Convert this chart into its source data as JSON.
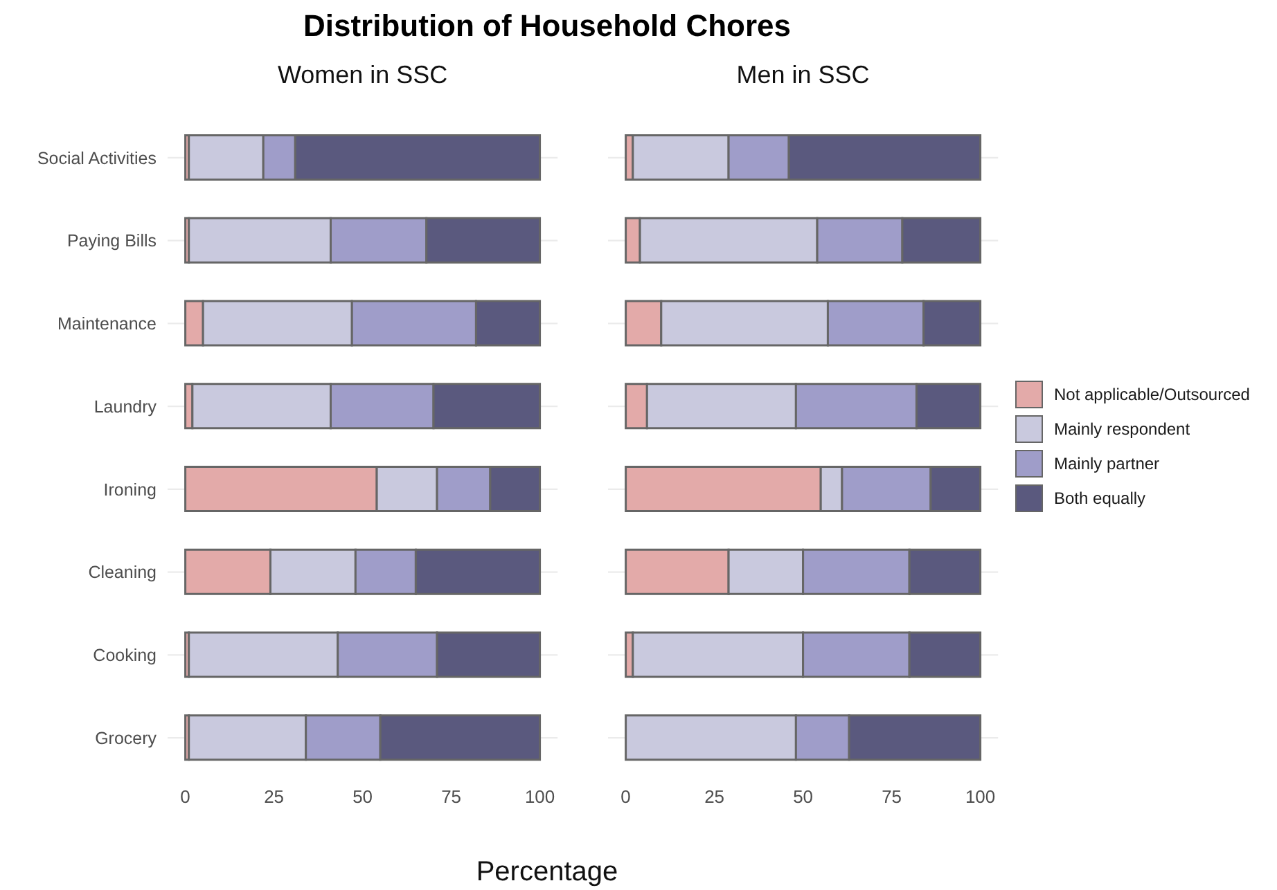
{
  "chart_data": [
    {
      "type": "bar",
      "title": "Distribution of Household Chores",
      "subtitle": "Women in SSC",
      "xlabel": "Percentage",
      "orientation": "horizontal",
      "stacked": true,
      "grid": "y",
      "legend": "right",
      "categories": [
        "Social Activities",
        "Paying Bills",
        "Maintenance",
        "Laundry",
        "Ironing",
        "Cleaning",
        "Cooking",
        "Grocery"
      ],
      "xlim": [
        -5,
        105
      ],
      "xticks": [
        0,
        25,
        50,
        75,
        100
      ],
      "series": [
        {
          "name": "Not applicable/Outsourced",
          "color": "#e3aaa9",
          "values": [
            1,
            1,
            5,
            2,
            54,
            24,
            1,
            1
          ]
        },
        {
          "name": "Mainly respondent",
          "color": "#c9c9de",
          "values": [
            21,
            40,
            42,
            39,
            17,
            24,
            42,
            33
          ]
        },
        {
          "name": "Mainly partner",
          "color": "#9f9dc9",
          "values": [
            9,
            27,
            35,
            29,
            15,
            17,
            28,
            21
          ]
        },
        {
          "name": "Both equally",
          "color": "#5a597e",
          "values": [
            69,
            32,
            18,
            30,
            14,
            35,
            29,
            45
          ]
        }
      ]
    },
    {
      "type": "bar",
      "subtitle": "Men in SSC",
      "orientation": "horizontal",
      "stacked": true,
      "grid": "y",
      "tick_labels": "x",
      "categories": [
        null,
        null,
        null,
        null,
        null,
        null,
        null,
        null
      ],
      "xlim": [
        -5,
        105
      ],
      "xticks": [
        0,
        25,
        50,
        75,
        100
      ],
      "series": [
        {
          "color": "#e3aaa9",
          "values": [
            2,
            4,
            10,
            6,
            55,
            29,
            2,
            0
          ]
        },
        {
          "color": "#c9c9de",
          "values": [
            27,
            50,
            47,
            42,
            6,
            21,
            48,
            48
          ]
        },
        {
          "color": "#9f9dc9",
          "values": [
            17,
            24,
            27,
            34,
            25,
            30,
            30,
            15
          ]
        },
        {
          "color": "#5a597e",
          "values": [
            54,
            22,
            16,
            18,
            14,
            20,
            20,
            37
          ]
        }
      ]
    }
  ]
}
